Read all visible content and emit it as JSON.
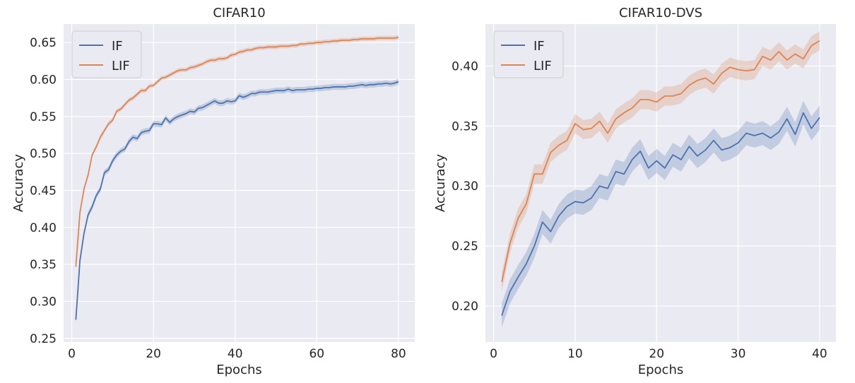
{
  "colors": {
    "IF": "#4c72b0",
    "LIF": "#dd8452"
  },
  "chart_data": [
    {
      "type": "line",
      "title": "CIFAR10",
      "xlabel": "Epochs",
      "ylabel": "Accuracy",
      "xlim": [
        -2,
        84
      ],
      "ylim": [
        0.245,
        0.675
      ],
      "xticks": [
        0,
        20,
        40,
        60,
        80
      ],
      "yticks": [
        0.25,
        0.3,
        0.35,
        0.4,
        0.45,
        0.5,
        0.55,
        0.6,
        0.65
      ],
      "ytick_labels": [
        "0.25",
        "0.30",
        "0.35",
        "0.40",
        "0.45",
        "0.50",
        "0.55",
        "0.60",
        "0.65"
      ],
      "grid": true,
      "legend": "upper-left",
      "x": [
        1,
        2,
        3,
        4,
        5,
        6,
        7,
        8,
        9,
        10,
        11,
        12,
        13,
        14,
        15,
        16,
        17,
        18,
        19,
        20,
        21,
        22,
        23,
        24,
        25,
        26,
        27,
        28,
        29,
        30,
        31,
        32,
        33,
        34,
        35,
        36,
        37,
        38,
        39,
        40,
        41,
        42,
        43,
        44,
        45,
        46,
        47,
        48,
        49,
        50,
        51,
        52,
        53,
        54,
        55,
        56,
        57,
        58,
        59,
        60,
        61,
        62,
        63,
        64,
        65,
        66,
        67,
        68,
        69,
        70,
        71,
        72,
        73,
        74,
        75,
        76,
        77,
        78,
        79,
        80
      ],
      "series": [
        {
          "name": "IF",
          "band": 0.004,
          "values": [
            0.275,
            0.355,
            0.392,
            0.417,
            0.428,
            0.443,
            0.452,
            0.474,
            0.478,
            0.49,
            0.498,
            0.503,
            0.506,
            0.516,
            0.522,
            0.52,
            0.528,
            0.53,
            0.531,
            0.54,
            0.54,
            0.539,
            0.548,
            0.542,
            0.547,
            0.55,
            0.552,
            0.554,
            0.557,
            0.556,
            0.561,
            0.562,
            0.565,
            0.568,
            0.571,
            0.568,
            0.568,
            0.571,
            0.57,
            0.571,
            0.578,
            0.576,
            0.578,
            0.581,
            0.581,
            0.583,
            0.583,
            0.583,
            0.584,
            0.585,
            0.585,
            0.585,
            0.587,
            0.585,
            0.586,
            0.586,
            0.586,
            0.587,
            0.587,
            0.588,
            0.588,
            0.589,
            0.589,
            0.59,
            0.59,
            0.59,
            0.59,
            0.591,
            0.591,
            0.592,
            0.593,
            0.592,
            0.593,
            0.593,
            0.594,
            0.594,
            0.595,
            0.594,
            0.595,
            0.597
          ]
        },
        {
          "name": "LIF",
          "band": 0.003,
          "values": [
            0.347,
            0.42,
            0.452,
            0.471,
            0.498,
            0.509,
            0.522,
            0.531,
            0.54,
            0.545,
            0.557,
            0.56,
            0.566,
            0.572,
            0.575,
            0.58,
            0.585,
            0.585,
            0.591,
            0.592,
            0.597,
            0.602,
            0.603,
            0.606,
            0.609,
            0.612,
            0.613,
            0.613,
            0.616,
            0.617,
            0.619,
            0.621,
            0.624,
            0.626,
            0.626,
            0.628,
            0.628,
            0.629,
            0.633,
            0.634,
            0.637,
            0.638,
            0.64,
            0.64,
            0.642,
            0.643,
            0.643,
            0.644,
            0.644,
            0.644,
            0.645,
            0.645,
            0.645,
            0.646,
            0.646,
            0.648,
            0.648,
            0.649,
            0.649,
            0.65,
            0.65,
            0.651,
            0.651,
            0.652,
            0.652,
            0.653,
            0.653,
            0.653,
            0.654,
            0.654,
            0.655,
            0.655,
            0.655,
            0.655,
            0.656,
            0.656,
            0.656,
            0.656,
            0.656,
            0.657
          ]
        }
      ]
    },
    {
      "type": "line",
      "title": "CIFAR10-DVS",
      "xlabel": "Epochs",
      "ylabel": "Accuracy",
      "xlim": [
        -1,
        42
      ],
      "ylim": [
        0.17,
        0.435
      ],
      "xticks": [
        0,
        10,
        20,
        30,
        40
      ],
      "yticks": [
        0.2,
        0.25,
        0.3,
        0.35,
        0.4
      ],
      "ytick_labels": [
        "0.20",
        "0.25",
        "0.30",
        "0.35",
        "0.40"
      ],
      "grid": true,
      "legend": "upper-left",
      "x": [
        1,
        2,
        3,
        4,
        5,
        6,
        7,
        8,
        9,
        10,
        11,
        12,
        13,
        14,
        15,
        16,
        17,
        18,
        19,
        20,
        21,
        22,
        23,
        24,
        25,
        26,
        27,
        28,
        29,
        30,
        31,
        32,
        33,
        34,
        35,
        36,
        37,
        38,
        39,
        40
      ],
      "series": [
        {
          "name": "IF",
          "band": 0.01,
          "values": [
            0.192,
            0.212,
            0.224,
            0.235,
            0.25,
            0.27,
            0.262,
            0.275,
            0.283,
            0.287,
            0.286,
            0.29,
            0.3,
            0.298,
            0.312,
            0.31,
            0.322,
            0.329,
            0.315,
            0.321,
            0.315,
            0.326,
            0.322,
            0.333,
            0.325,
            0.33,
            0.338,
            0.33,
            0.332,
            0.336,
            0.344,
            0.342,
            0.344,
            0.34,
            0.345,
            0.356,
            0.343,
            0.361,
            0.348,
            0.357
          ]
        },
        {
          "name": "LIF",
          "band": 0.008,
          "values": [
            0.22,
            0.252,
            0.273,
            0.285,
            0.31,
            0.31,
            0.328,
            0.334,
            0.338,
            0.352,
            0.347,
            0.348,
            0.354,
            0.344,
            0.356,
            0.361,
            0.365,
            0.372,
            0.372,
            0.37,
            0.375,
            0.375,
            0.377,
            0.384,
            0.388,
            0.39,
            0.385,
            0.394,
            0.399,
            0.397,
            0.396,
            0.397,
            0.408,
            0.405,
            0.412,
            0.405,
            0.41,
            0.406,
            0.417,
            0.421
          ]
        }
      ]
    }
  ]
}
